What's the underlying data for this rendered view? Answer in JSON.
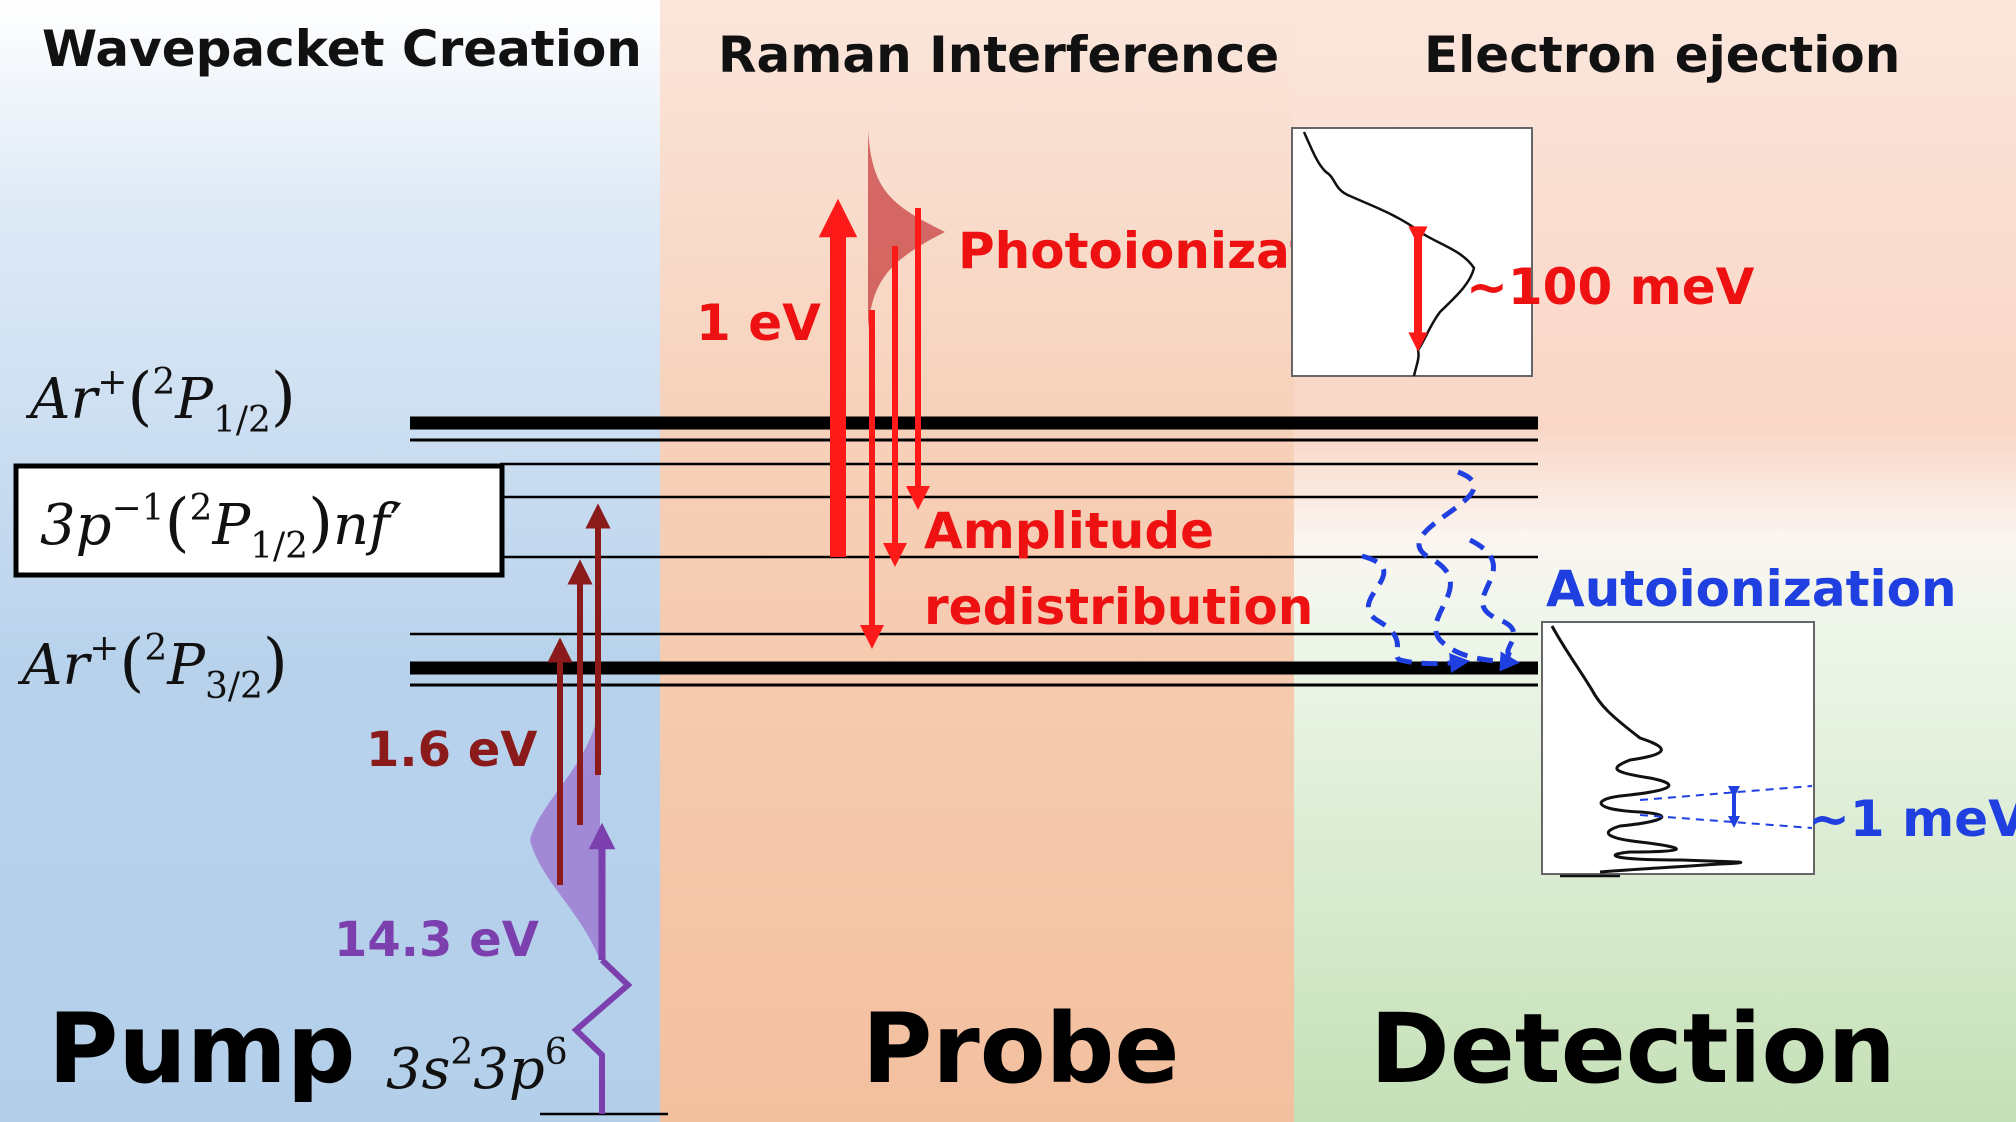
{
  "headers": {
    "left": "Wavepacket Creation",
    "middle": "Raman Interference",
    "right": "Electron ejection"
  },
  "sections": {
    "left": "Pump",
    "middle": "Probe",
    "right": "Detection"
  },
  "levels": {
    "upper": {
      "base": "Ar",
      "sup": "+",
      "open": "(",
      "term_sup": "2",
      "term": "P",
      "term_sub": "1/2",
      "close": ")"
    },
    "rydberg": {
      "pre": "3p",
      "pre_sup": "−1",
      "open": "(",
      "term_sup": "2",
      "term": "P",
      "term_sub": "1/2",
      "close": ")",
      "post": "nf",
      "prime": "′"
    },
    "lower": {
      "base": "Ar",
      "sup": "+",
      "open": "(",
      "term_sup": "2",
      "term": "P",
      "term_sub": "3/2",
      "close": ")"
    },
    "ground": {
      "p1": "3s",
      "s1": "2",
      "p2": "3p",
      "s2": "6"
    }
  },
  "labels": {
    "ir_energy": "1.6 eV",
    "xuv_energy": "14.3 eV",
    "probe_energy": "1 eV",
    "photoionization": "Photoionization",
    "amplitude_1": "Amplitude",
    "amplitude_2": "redistribution",
    "autoionization": "Autoionization",
    "pi_width": "~100 meV",
    "ai_width": "~1 meV"
  },
  "colors": {
    "pump_bg": "#b9d3ec",
    "probe_bg": "#f4c6a8",
    "detect_top_bg": "#f9d7c6",
    "detect_bottom_bg": "#cfe6c4",
    "ir_arrow": "#8b1a1a",
    "xuv_arrow": "#7b3fae",
    "probe_arrow": "#ff1a1a",
    "probe_text": "#ee1111",
    "autoionization": "#1f3fe0",
    "level_line": "#000000"
  }
}
